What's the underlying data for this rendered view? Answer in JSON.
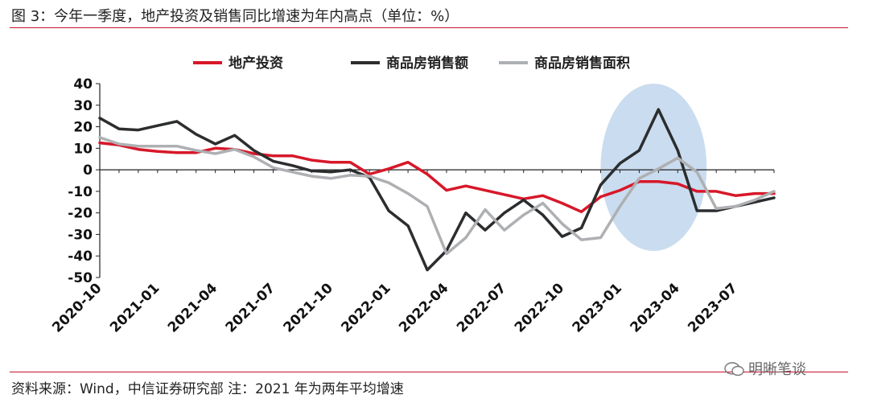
{
  "figure": {
    "title": "图 3：今年一季度，地产投资及销售同比增速为年内高点（单位：%）",
    "source": "资料来源：Wind，中信证券研究部  注：2021 年为两年平均增速",
    "watermark": "明晰笔谈"
  },
  "chart_data": {
    "type": "line",
    "title": "",
    "xlabel": "",
    "ylabel": "",
    "ylim": [
      -50,
      40
    ],
    "yticks": [
      40,
      30,
      20,
      10,
      0,
      -10,
      -20,
      -30,
      -40,
      -50
    ],
    "grid": false,
    "legend_position": "top",
    "x": [
      "2020-10",
      "2020-11",
      "2020-12",
      "2021-01",
      "2021-02",
      "2021-03",
      "2021-04",
      "2021-05",
      "2021-06",
      "2021-07",
      "2021-08",
      "2021-09",
      "2021-10",
      "2021-11",
      "2021-12",
      "2022-01",
      "2022-02",
      "2022-03",
      "2022-04",
      "2022-05",
      "2022-06",
      "2022-07",
      "2022-08",
      "2022-09",
      "2022-10",
      "2022-11",
      "2022-12",
      "2023-01",
      "2023-02",
      "2023-03",
      "2023-04",
      "2023-05",
      "2023-06",
      "2023-07",
      "2023-08",
      "2023-09"
    ],
    "xtick_labels": [
      "2020-10",
      "2021-01",
      "2021-04",
      "2021-07",
      "2021-10",
      "2022-01",
      "2022-04",
      "2022-07",
      "2022-10",
      "2023-01",
      "2023-04",
      "2023-07"
    ],
    "series": [
      {
        "name": "地产投资",
        "color": "#d7182a",
        "values": [
          12.5,
          11.5,
          9.5,
          8.5,
          8,
          8,
          10,
          9.5,
          7.5,
          6.5,
          6.5,
          4.5,
          3.5,
          3.5,
          -2,
          0.5,
          3.5,
          -2,
          -9.5,
          -7.5,
          -9.5,
          -11.5,
          -13.5,
          -12,
          -15.5,
          -19.5,
          -12.5,
          -9.5,
          -5.5,
          -5.5,
          -6.5,
          -10,
          -10,
          -12,
          -11,
          -11
        ]
      },
      {
        "name": "商品房销售额",
        "color": "#2b2d2f",
        "values": [
          24,
          19,
          18.5,
          20.5,
          22.5,
          16.5,
          12,
          16,
          9,
          4,
          2,
          -0.5,
          -1,
          0,
          -3.5,
          -19,
          -26,
          -46.5,
          -37.5,
          -20,
          -28,
          -20,
          -14,
          -21,
          -31,
          -27,
          -7,
          3,
          9,
          28,
          9,
          -19,
          -19,
          -17,
          -15,
          -13
        ]
      },
      {
        "name": "商品房销售面积",
        "color": "#aeb0b3",
        "values": [
          15,
          12,
          11,
          11,
          11,
          9,
          7.5,
          9.5,
          6,
          1,
          -1,
          -3,
          -4,
          -2.5,
          -3,
          -6,
          -11,
          -17,
          -39,
          -31.5,
          -18.5,
          -28,
          -21,
          -15.5,
          -25,
          -32.5,
          -31.5,
          -17,
          -4,
          0.5,
          5.5,
          -1,
          -18,
          -17,
          -14,
          -10
        ]
      }
    ],
    "annotations": [
      {
        "type": "highlight-ellipse",
        "x_range": [
          "2023-01",
          "2023-04"
        ],
        "color": "#b8d0ea"
      }
    ]
  }
}
